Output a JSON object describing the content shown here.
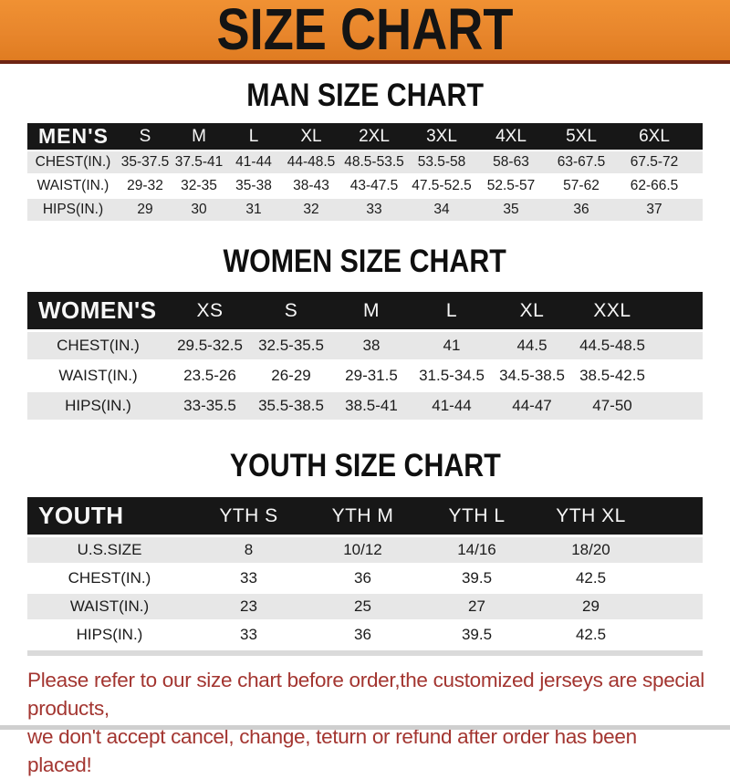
{
  "banner": {
    "title": "SIZE CHART"
  },
  "chart_data": [
    {
      "type": "table",
      "title": "MAN SIZE CHART",
      "columns": [
        "MEN'S",
        "S",
        "M",
        "L",
        "XL",
        "2XL",
        "3XL",
        "4XL",
        "5XL",
        "6XL"
      ],
      "rows": [
        {
          "label": "CHEST(IN.)",
          "values": [
            "35-37.5",
            "37.5-41",
            "41-44",
            "44-48.5",
            "48.5-53.5",
            "53.5-58",
            "58-63",
            "63-67.5",
            "67.5-72"
          ]
        },
        {
          "label": "WAIST(IN.)",
          "values": [
            "29-32",
            "32-35",
            "35-38",
            "38-43",
            "43-47.5",
            "47.5-52.5",
            "52.5-57",
            "57-62",
            "62-66.5"
          ]
        },
        {
          "label": "HIPS(IN.)",
          "values": [
            "29",
            "30",
            "31",
            "32",
            "33",
            "34",
            "35",
            "36",
            "37"
          ]
        }
      ]
    },
    {
      "type": "table",
      "title": "WOMEN SIZE CHART",
      "columns": [
        "WOMEN'S",
        "XS",
        "S",
        "M",
        "L",
        "XL",
        "XXL"
      ],
      "rows": [
        {
          "label": "CHEST(IN.)",
          "values": [
            "29.5-32.5",
            "32.5-35.5",
            "38",
            "41",
            "44.5",
            "44.5-48.5"
          ]
        },
        {
          "label": "WAIST(IN.)",
          "values": [
            "23.5-26",
            "26-29",
            "29-31.5",
            "31.5-34.5",
            "34.5-38.5",
            "38.5-42.5"
          ]
        },
        {
          "label": "HIPS(IN.)",
          "values": [
            "33-35.5",
            "35.5-38.5",
            "38.5-41",
            "41-44",
            "44-47",
            "47-50"
          ]
        }
      ]
    },
    {
      "type": "table",
      "title": "YOUTH SIZE CHART",
      "columns": [
        "YOUTH",
        "YTH S",
        "YTH M",
        "YTH L",
        "YTH XL"
      ],
      "rows": [
        {
          "label": "U.S.SIZE",
          "values": [
            "8",
            "10/12",
            "14/16",
            "18/20"
          ]
        },
        {
          "label": "CHEST(IN.)",
          "values": [
            "33",
            "36",
            "39.5",
            "42.5"
          ]
        },
        {
          "label": "WAIST(IN.)",
          "values": [
            "23",
            "25",
            "27",
            "29"
          ]
        },
        {
          "label": "HIPS(IN.)",
          "values": [
            "33",
            "36",
            "39.5",
            "42.5"
          ]
        }
      ]
    }
  ],
  "footer": {
    "line1": "Please refer to our size chart before order,the customized jerseys are special products,",
    "line2": "we don't accept cancel, change, teturn or refund after order has been placed!"
  },
  "colors": {
    "banner_bg": "#E8862C",
    "bar_bg": "#171717",
    "row_gray": "#E7E7E7",
    "note_red": "#A33530"
  }
}
